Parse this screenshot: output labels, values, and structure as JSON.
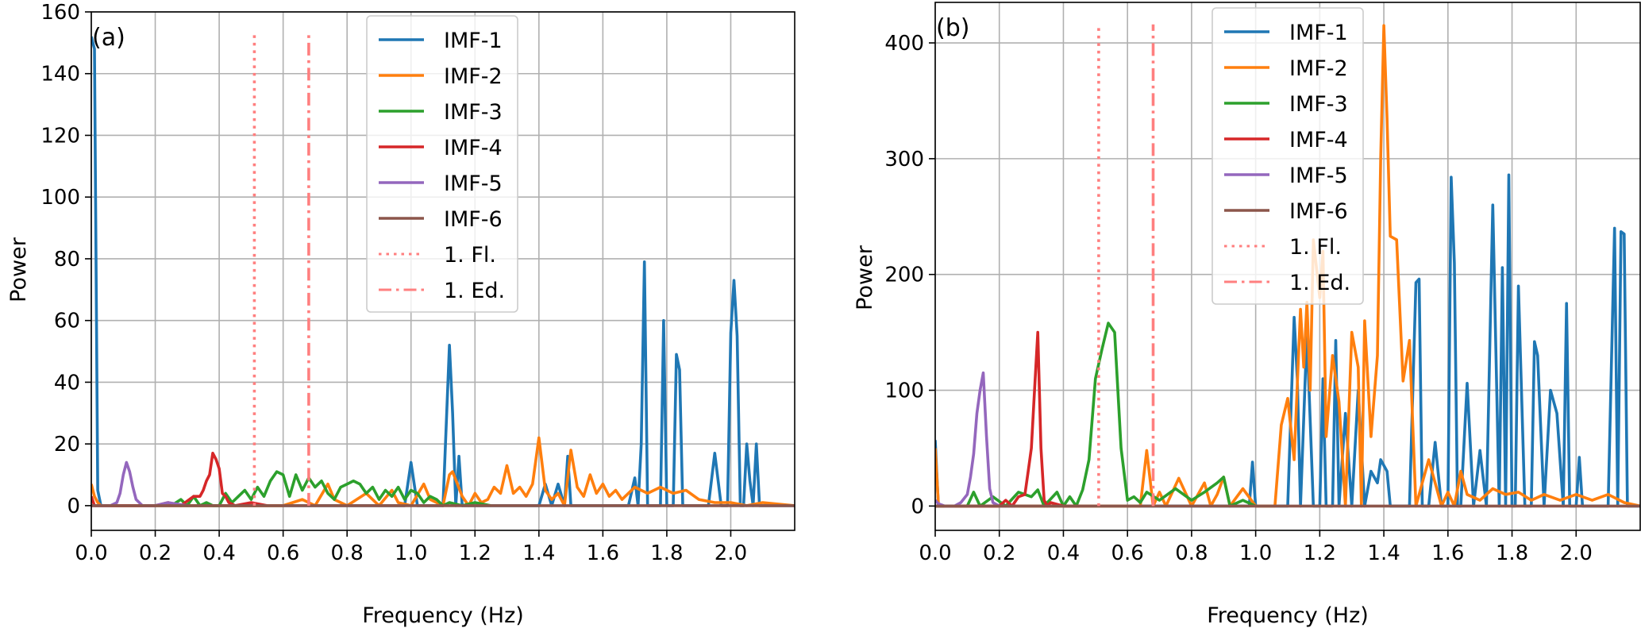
{
  "chart_data": [
    {
      "type": "line",
      "panel_label": "(a)",
      "xlabel": "Frequency (Hz)",
      "ylabel": "Power",
      "xlim": [
        0.0,
        2.2
      ],
      "ylim": [
        -8,
        160
      ],
      "xticks": [
        0.0,
        0.2,
        0.4,
        0.6,
        0.8,
        1.0,
        1.2,
        1.4,
        1.6,
        1.8,
        2.0
      ],
      "xtick_labels": [
        "0.0",
        "0.2",
        "0.4",
        "0.6",
        "0.8",
        "1.0",
        "1.2",
        "1.4",
        "1.6",
        "1.8",
        "2.0"
      ],
      "yticks": [
        0,
        20,
        40,
        60,
        80,
        100,
        120,
        140,
        160
      ],
      "ytick_labels": [
        "0",
        "20",
        "40",
        "60",
        "80",
        "100",
        "120",
        "140",
        "160"
      ],
      "grid": true,
      "legend_position": "top-center",
      "series": [
        {
          "name": "IMF-1",
          "color": "#1f77b4",
          "style": "solid",
          "x": [
            0.0,
            0.01,
            0.02,
            0.03,
            0.1,
            0.3,
            0.5,
            0.7,
            0.98,
            1.0,
            1.02,
            1.04,
            1.1,
            1.12,
            1.13,
            1.14,
            1.15,
            1.16,
            1.17,
            1.2,
            1.4,
            1.42,
            1.44,
            1.46,
            1.48,
            1.49,
            1.5,
            1.52,
            1.6,
            1.68,
            1.7,
            1.71,
            1.72,
            1.73,
            1.74,
            1.76,
            1.78,
            1.79,
            1.8,
            1.82,
            1.83,
            1.84,
            1.85,
            1.86,
            1.88,
            1.9,
            1.93,
            1.95,
            1.97,
            1.99,
            2.0,
            2.01,
            2.02,
            2.03,
            2.04,
            2.05,
            2.06,
            2.07,
            2.08,
            2.09,
            2.1,
            2.11,
            2.2
          ],
          "y": [
            152,
            148,
            5,
            0,
            0,
            0,
            0,
            0,
            0,
            14,
            0,
            0,
            0,
            52,
            30,
            0,
            16,
            0,
            0,
            0,
            0,
            7,
            0,
            7,
            0,
            16,
            0,
            0,
            0,
            0,
            9,
            0,
            20,
            79,
            0,
            0,
            0,
            60,
            0,
            0,
            49,
            44,
            0,
            0,
            0,
            0,
            0,
            17,
            0,
            0,
            56,
            73,
            55,
            0,
            0,
            20,
            8,
            0,
            20,
            0,
            0,
            0,
            0
          ]
        },
        {
          "name": "IMF-2",
          "color": "#ff7f0e",
          "style": "solid",
          "x": [
            0.0,
            0.01,
            0.02,
            0.03,
            0.05,
            0.6,
            0.66,
            0.7,
            0.74,
            0.76,
            0.8,
            0.86,
            0.9,
            0.94,
            0.96,
            1.0,
            1.04,
            1.06,
            1.1,
            1.12,
            1.13,
            1.16,
            1.18,
            1.2,
            1.22,
            1.24,
            1.26,
            1.28,
            1.3,
            1.32,
            1.34,
            1.36,
            1.38,
            1.4,
            1.42,
            1.44,
            1.46,
            1.48,
            1.5,
            1.52,
            1.54,
            1.56,
            1.58,
            1.6,
            1.62,
            1.64,
            1.66,
            1.7,
            1.74,
            1.78,
            1.82,
            1.86,
            1.9,
            1.95,
            2.0,
            2.05,
            2.1,
            2.2
          ],
          "y": [
            7,
            3,
            1,
            0,
            0,
            0,
            2,
            0,
            7,
            2,
            0,
            4,
            0,
            5,
            1,
            0,
            7,
            2,
            0,
            10,
            11,
            3,
            0,
            4,
            1,
            2,
            6,
            4,
            13,
            4,
            6,
            3,
            7,
            22,
            5,
            2,
            4,
            0,
            18,
            6,
            3,
            10,
            4,
            7,
            3,
            5,
            2,
            6,
            4,
            6,
            4,
            5,
            2,
            1,
            1,
            0,
            1,
            0
          ]
        },
        {
          "name": "IMF-3",
          "color": "#2ca02c",
          "style": "solid",
          "x": [
            0.25,
            0.28,
            0.3,
            0.32,
            0.34,
            0.36,
            0.38,
            0.4,
            0.42,
            0.44,
            0.46,
            0.48,
            0.5,
            0.52,
            0.54,
            0.56,
            0.58,
            0.6,
            0.62,
            0.64,
            0.66,
            0.68,
            0.7,
            0.72,
            0.74,
            0.76,
            0.78,
            0.8,
            0.82,
            0.84,
            0.86,
            0.88,
            0.9,
            0.92,
            0.94,
            0.96,
            0.98,
            1.0,
            1.02,
            1.04,
            1.06,
            1.08,
            1.1,
            1.12,
            1.16,
            1.2,
            1.25
          ],
          "y": [
            0,
            2,
            0,
            3,
            0,
            1,
            0,
            0,
            4,
            1,
            3,
            5,
            2,
            6,
            3,
            8,
            11,
            10,
            3,
            10,
            5,
            9,
            6,
            8,
            4,
            2,
            6,
            7,
            8,
            7,
            4,
            6,
            2,
            5,
            3,
            6,
            2,
            5,
            4,
            1,
            3,
            2,
            0,
            1,
            0,
            1,
            0
          ]
        },
        {
          "name": "IMF-4",
          "color": "#d62728",
          "style": "solid",
          "x": [
            0.0,
            0.01,
            0.03,
            0.05,
            0.2,
            0.24,
            0.28,
            0.32,
            0.34,
            0.35,
            0.36,
            0.37,
            0.38,
            0.39,
            0.4,
            0.41,
            0.42,
            0.43,
            0.45,
            0.5,
            0.55
          ],
          "y": [
            3,
            0,
            0,
            0,
            0,
            1,
            0,
            3,
            3,
            5,
            8,
            10,
            17,
            15,
            12,
            4,
            3,
            1,
            0,
            1,
            0
          ]
        },
        {
          "name": "IMF-5",
          "color": "#9467bd",
          "style": "solid",
          "x": [
            0.0,
            0.06,
            0.08,
            0.09,
            0.1,
            0.11,
            0.12,
            0.13,
            0.14,
            0.15,
            0.16,
            0.2,
            0.24,
            0.3
          ],
          "y": [
            0,
            0,
            1,
            4,
            10,
            14,
            11,
            6,
            2,
            1,
            0,
            0,
            1,
            0
          ]
        },
        {
          "name": "IMF-6",
          "color": "#8c564b",
          "style": "solid",
          "x": [
            0.0,
            2.2
          ],
          "y": [
            0,
            0
          ]
        },
        {
          "name": "1. Fl.",
          "color": "#ff7f7f",
          "style": "dotted",
          "x": [
            0.51,
            0.51
          ],
          "y": [
            0,
            153
          ]
        },
        {
          "name": "1. Ed.",
          "color": "#ff7f7f",
          "style": "dashdot",
          "x": [
            0.68,
            0.68
          ],
          "y": [
            0,
            153
          ]
        }
      ]
    },
    {
      "type": "line",
      "panel_label": "(b)",
      "xlabel": "Frequency (Hz)",
      "ylabel": "Power",
      "xlim": [
        0.0,
        2.2
      ],
      "ylim": [
        -21,
        435
      ],
      "xticks": [
        0.0,
        0.2,
        0.4,
        0.6,
        0.8,
        1.0,
        1.2,
        1.4,
        1.6,
        1.8,
        2.0
      ],
      "xtick_labels": [
        "0.0",
        "0.2",
        "0.4",
        "0.6",
        "0.8",
        "1.0",
        "1.2",
        "1.4",
        "1.6",
        "1.8",
        "2.0"
      ],
      "yticks": [
        0,
        100,
        200,
        300,
        400
      ],
      "ytick_labels": [
        "0",
        "100",
        "200",
        "300",
        "400"
      ],
      "grid": true,
      "legend_position": "top-center",
      "series": [
        {
          "name": "IMF-1",
          "color": "#1f77b4",
          "style": "solid",
          "x": [
            0.0,
            0.01,
            0.02,
            0.03,
            0.5,
            0.98,
            0.99,
            1.0,
            1.02,
            1.08,
            1.1,
            1.12,
            1.13,
            1.14,
            1.16,
            1.18,
            1.2,
            1.21,
            1.22,
            1.24,
            1.25,
            1.26,
            1.28,
            1.3,
            1.32,
            1.34,
            1.36,
            1.38,
            1.39,
            1.41,
            1.42,
            1.44,
            1.46,
            1.48,
            1.5,
            1.51,
            1.52,
            1.54,
            1.56,
            1.58,
            1.6,
            1.61,
            1.62,
            1.63,
            1.64,
            1.66,
            1.68,
            1.7,
            1.72,
            1.74,
            1.76,
            1.77,
            1.78,
            1.79,
            1.8,
            1.81,
            1.82,
            1.84,
            1.86,
            1.87,
            1.88,
            1.9,
            1.92,
            1.94,
            1.96,
            1.97,
            1.98,
            2.0,
            2.01,
            2.02,
            2.04,
            2.06,
            2.08,
            2.1,
            2.12,
            2.13,
            2.14,
            2.15,
            2.16,
            2.17,
            2.18,
            2.2
          ],
          "y": [
            57,
            0,
            0,
            0,
            0,
            0,
            38,
            0,
            0,
            0,
            0,
            163,
            110,
            0,
            150,
            0,
            0,
            110,
            0,
            0,
            143,
            0,
            80,
            0,
            100,
            0,
            30,
            20,
            40,
            30,
            0,
            0,
            0,
            0,
            193,
            196,
            0,
            0,
            55,
            0,
            0,
            284,
            210,
            0,
            0,
            106,
            0,
            48,
            0,
            260,
            0,
            206,
            0,
            286,
            0,
            0,
            190,
            0,
            0,
            142,
            130,
            0,
            100,
            80,
            0,
            175,
            0,
            0,
            42,
            0,
            0,
            0,
            0,
            0,
            240,
            0,
            237,
            235,
            0,
            0,
            0,
            0
          ]
        },
        {
          "name": "IMF-2",
          "color": "#ff7f0e",
          "style": "solid",
          "x": [
            0.0,
            0.01,
            0.02,
            0.04,
            0.5,
            0.64,
            0.66,
            0.68,
            0.7,
            0.72,
            0.76,
            0.8,
            0.84,
            0.86,
            0.88,
            0.9,
            0.92,
            0.96,
            1.0,
            1.06,
            1.08,
            1.1,
            1.12,
            1.14,
            1.15,
            1.16,
            1.17,
            1.18,
            1.2,
            1.21,
            1.22,
            1.24,
            1.26,
            1.28,
            1.3,
            1.32,
            1.33,
            1.34,
            1.36,
            1.38,
            1.39,
            1.4,
            1.41,
            1.42,
            1.44,
            1.46,
            1.48,
            1.5,
            1.52,
            1.54,
            1.56,
            1.58,
            1.6,
            1.62,
            1.64,
            1.66,
            1.7,
            1.74,
            1.78,
            1.82,
            1.86,
            1.9,
            1.95,
            2.0,
            2.05,
            2.1,
            2.15,
            2.2
          ],
          "y": [
            50,
            2,
            0,
            0,
            0,
            0,
            48,
            0,
            12,
            0,
            24,
            0,
            20,
            0,
            10,
            25,
            0,
            15,
            0,
            0,
            70,
            93,
            40,
            170,
            120,
            176,
            100,
            230,
            180,
            220,
            60,
            130,
            90,
            0,
            150,
            120,
            0,
            160,
            60,
            130,
            300,
            415,
            335,
            233,
            230,
            108,
            143,
            0,
            20,
            40,
            20,
            0,
            12,
            0,
            30,
            10,
            5,
            15,
            10,
            12,
            5,
            10,
            5,
            10,
            5,
            10,
            3,
            0
          ]
        },
        {
          "name": "IMF-3",
          "color": "#2ca02c",
          "style": "solid",
          "x": [
            0.0,
            0.1,
            0.12,
            0.14,
            0.18,
            0.22,
            0.26,
            0.3,
            0.32,
            0.34,
            0.38,
            0.4,
            0.42,
            0.44,
            0.46,
            0.48,
            0.5,
            0.52,
            0.54,
            0.56,
            0.58,
            0.6,
            0.62,
            0.64,
            0.66,
            0.7,
            0.75,
            0.8,
            0.84,
            0.88,
            0.9,
            0.92,
            0.96,
            1.0
          ],
          "y": [
            0,
            0,
            12,
            0,
            8,
            0,
            12,
            8,
            14,
            0,
            12,
            0,
            8,
            0,
            14,
            40,
            110,
            135,
            158,
            150,
            50,
            5,
            8,
            3,
            12,
            5,
            15,
            5,
            12,
            20,
            25,
            0,
            5,
            0
          ]
        },
        {
          "name": "IMF-4",
          "color": "#d62728",
          "style": "solid",
          "x": [
            0.0,
            0.2,
            0.22,
            0.24,
            0.26,
            0.28,
            0.29,
            0.3,
            0.31,
            0.32,
            0.33,
            0.34,
            0.35,
            0.36,
            0.4,
            0.45
          ],
          "y": [
            0,
            0,
            5,
            0,
            8,
            10,
            30,
            50,
            100,
            150,
            50,
            5,
            0,
            3,
            0,
            0
          ]
        },
        {
          "name": "IMF-5",
          "color": "#9467bd",
          "style": "solid",
          "x": [
            0.0,
            0.01,
            0.03,
            0.06,
            0.08,
            0.1,
            0.11,
            0.12,
            0.13,
            0.14,
            0.15,
            0.16,
            0.17,
            0.18,
            0.2,
            0.25
          ],
          "y": [
            5,
            2,
            0,
            0,
            3,
            10,
            25,
            45,
            80,
            100,
            115,
            60,
            15,
            3,
            0,
            0
          ]
        },
        {
          "name": "IMF-6",
          "color": "#8c564b",
          "style": "solid",
          "x": [
            0.0,
            2.2
          ],
          "y": [
            0,
            0
          ]
        },
        {
          "name": "1. Fl.",
          "color": "#ff7f7f",
          "style": "dotted",
          "x": [
            0.51,
            0.51
          ],
          "y": [
            0,
            413
          ]
        },
        {
          "name": "1. Ed.",
          "color": "#ff7f7f",
          "style": "dashdot",
          "x": [
            0.68,
            0.68
          ],
          "y": [
            0,
            416
          ]
        }
      ]
    }
  ]
}
